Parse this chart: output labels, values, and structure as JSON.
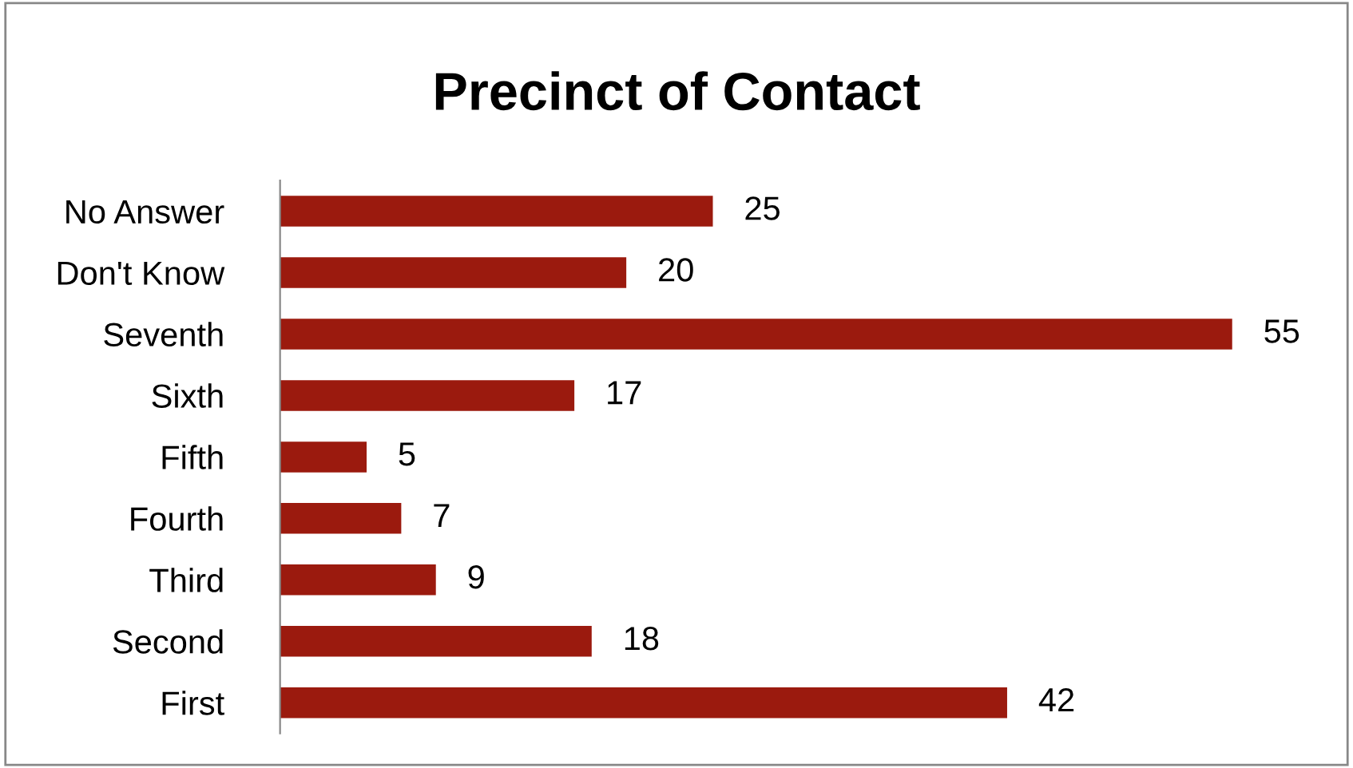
{
  "chart_data": {
    "type": "bar",
    "orientation": "horizontal",
    "title": "Precinct of Contact",
    "categories": [
      "No Answer",
      "Don't Know",
      "Seventh",
      "Sixth",
      "Fifth",
      "Fourth",
      "Third",
      "Second",
      "First"
    ],
    "values": [
      25,
      20,
      55,
      17,
      5,
      7,
      9,
      18,
      42
    ],
    "color": "#9b1a0e",
    "data_labels": true,
    "tick_labels": "y",
    "grid": false,
    "legend": false
  }
}
